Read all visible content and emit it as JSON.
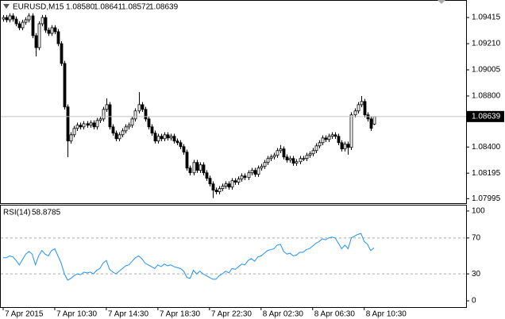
{
  "chart_data": [
    {
      "type": "candlestick",
      "title": "EURUSD,M15",
      "last_bar_labels": [
        "1.08580",
        "1.08641",
        "1.08572",
        "1.08639"
      ],
      "categories": [
        "7 Apr 2015",
        null,
        null,
        null,
        null,
        null,
        null,
        null,
        null,
        null,
        null,
        null,
        null,
        null,
        null,
        null,
        "7 Apr 10:30",
        null,
        null,
        null,
        null,
        null,
        null,
        null,
        null,
        null,
        null,
        null,
        null,
        null,
        null,
        null,
        "7 Apr 14:30",
        null,
        null,
        null,
        null,
        null,
        null,
        null,
        null,
        null,
        null,
        null,
        null,
        null,
        null,
        null,
        "7 Apr 18:30",
        null,
        null,
        null,
        null,
        null,
        null,
        null,
        null,
        null,
        null,
        null,
        null,
        null,
        null,
        null,
        "7 Apr 22:30",
        null,
        null,
        null,
        null,
        null,
        null,
        null,
        null,
        null,
        null,
        null,
        null,
        null,
        null,
        null,
        "8 Apr 02:30",
        null,
        null,
        null,
        null,
        null,
        null,
        null,
        null,
        null,
        null,
        null,
        null,
        null,
        null,
        null,
        "8 Apr 06:30",
        null,
        null,
        null,
        null,
        null,
        null,
        null,
        null,
        null,
        null,
        null,
        null,
        null,
        null,
        null,
        "8 Apr 10:30",
        null,
        null,
        null
      ],
      "open": [
        1.09403,
        1.09415,
        1.09397,
        1.09428,
        1.09403,
        1.09366,
        1.09335,
        1.09378,
        1.09397,
        1.09428,
        1.09273,
        1.09179,
        1.09366,
        1.09415,
        1.09316,
        1.09291,
        1.09335,
        1.09304,
        1.0921,
        1.09055,
        1.08714,
        1.08447,
        1.08496,
        1.08546,
        1.08571,
        1.08558,
        1.08583,
        1.08571,
        1.08589,
        1.08558,
        1.08608,
        1.0862,
        1.08695,
        1.08732,
        1.08558,
        1.08509,
        1.08465,
        1.08496,
        1.08527,
        1.08558,
        1.08571,
        1.0862,
        1.08683,
        1.08732,
        1.08695,
        1.0862,
        1.08558,
        1.08509,
        1.08447,
        1.08484,
        1.08465,
        1.08496,
        1.08471,
        1.08484,
        1.08447,
        1.08434,
        1.08403,
        1.0836,
        1.08235,
        1.08198,
        1.08279,
        1.08217,
        1.0826,
        1.08198,
        1.08155,
        1.08111,
        1.08062,
        1.08049,
        1.08074,
        1.08093,
        1.08111,
        1.08086,
        1.08136,
        1.08124,
        1.08149,
        1.08173,
        1.08161,
        1.08198,
        1.08217,
        1.08186,
        1.08235,
        1.08248,
        1.08279,
        1.0831,
        1.08322,
        1.08335,
        1.08372,
        1.08385,
        1.08322,
        1.08298,
        1.0831,
        1.08273,
        1.08285,
        1.0831,
        1.0831,
        1.08335,
        1.08347,
        1.08372,
        1.08409,
        1.08434,
        1.08471,
        1.08459,
        1.08484,
        1.08496,
        1.08484,
        1.08434,
        1.08385,
        1.08422,
        1.08397,
        1.08652,
        1.08683,
        1.08732,
        1.08757,
        1.08652,
        1.0862,
        1.0858
      ],
      "high": [
        1.09435,
        1.09435,
        1.09448,
        1.09448,
        1.09423,
        1.09386,
        1.09398,
        1.09417,
        1.09448,
        1.09448,
        1.09293,
        1.09386,
        1.09435,
        1.09435,
        1.09336,
        1.09355,
        1.09355,
        1.09324,
        1.0923,
        1.09075,
        1.08734,
        1.08516,
        1.08566,
        1.08591,
        1.08591,
        1.08603,
        1.08603,
        1.08609,
        1.08609,
        1.08628,
        1.0864,
        1.08715,
        1.0878,
        1.08752,
        1.08578,
        1.08529,
        1.08516,
        1.08547,
        1.08578,
        1.08591,
        1.0864,
        1.08703,
        1.0883,
        1.08752,
        1.08715,
        1.0864,
        1.08578,
        1.08529,
        1.08504,
        1.08504,
        1.08516,
        1.08516,
        1.08504,
        1.08504,
        1.08467,
        1.08454,
        1.08423,
        1.0838,
        1.08255,
        1.08299,
        1.08299,
        1.0828,
        1.0828,
        1.08218,
        1.08175,
        1.08131,
        1.08082,
        1.08094,
        1.08113,
        1.08131,
        1.08131,
        1.08156,
        1.08156,
        1.08169,
        1.08193,
        1.08193,
        1.08218,
        1.08237,
        1.08237,
        1.08255,
        1.08268,
        1.08299,
        1.0833,
        1.08342,
        1.08355,
        1.08392,
        1.08416,
        1.08405,
        1.08342,
        1.0833,
        1.0833,
        1.08305,
        1.0833,
        1.0833,
        1.08355,
        1.08367,
        1.08392,
        1.08429,
        1.08454,
        1.08491,
        1.08491,
        1.08504,
        1.08516,
        1.08516,
        1.08504,
        1.08454,
        1.08442,
        1.08442,
        1.08672,
        1.08703,
        1.08752,
        1.088,
        1.08777,
        1.08672,
        1.0864,
        1.08641
      ],
      "low": [
        1.09383,
        1.09377,
        1.09377,
        1.09383,
        1.09346,
        1.09315,
        1.09315,
        1.09358,
        1.09377,
        1.09253,
        1.0911,
        1.09159,
        1.09346,
        1.09296,
        1.09271,
        1.09271,
        1.09284,
        1.0919,
        1.09035,
        1.08694,
        1.0832,
        1.08427,
        1.08476,
        1.08526,
        1.08538,
        1.08538,
        1.08551,
        1.08551,
        1.08538,
        1.08538,
        1.08588,
        1.086,
        1.08675,
        1.08538,
        1.08489,
        1.08445,
        1.08445,
        1.08476,
        1.08507,
        1.08538,
        1.08551,
        1.086,
        1.08663,
        1.08675,
        1.086,
        1.08538,
        1.08489,
        1.08427,
        1.08427,
        1.08445,
        1.08445,
        1.08451,
        1.08451,
        1.08427,
        1.08414,
        1.08383,
        1.0834,
        1.08215,
        1.08178,
        1.08178,
        1.08197,
        1.08197,
        1.08178,
        1.08135,
        1.08091,
        1.08,
        1.08029,
        1.08029,
        1.08054,
        1.08073,
        1.08066,
        1.08066,
        1.08104,
        1.08104,
        1.08129,
        1.08141,
        1.08141,
        1.08178,
        1.08166,
        1.08166,
        1.08215,
        1.08228,
        1.08259,
        1.0829,
        1.08302,
        1.08315,
        1.08352,
        1.08302,
        1.08278,
        1.08278,
        1.08253,
        1.08253,
        1.08265,
        1.0829,
        1.0829,
        1.08315,
        1.08327,
        1.08352,
        1.08389,
        1.08414,
        1.08439,
        1.08439,
        1.08464,
        1.08464,
        1.08414,
        1.08365,
        1.08365,
        1.0834,
        1.08377,
        1.08632,
        1.08663,
        1.08712,
        1.08632,
        1.086,
        1.08526,
        1.08572
      ],
      "close": [
        1.09415,
        1.09397,
        1.09428,
        1.09403,
        1.09366,
        1.09335,
        1.09378,
        1.09397,
        1.09428,
        1.09273,
        1.09179,
        1.09366,
        1.09415,
        1.09316,
        1.09291,
        1.09335,
        1.09304,
        1.0921,
        1.09055,
        1.08714,
        1.08447,
        1.08496,
        1.08546,
        1.08571,
        1.08558,
        1.08583,
        1.08571,
        1.08589,
        1.08558,
        1.08608,
        1.0862,
        1.08695,
        1.08732,
        1.08558,
        1.08509,
        1.08465,
        1.08496,
        1.08527,
        1.08558,
        1.08571,
        1.0862,
        1.08683,
        1.08732,
        1.08695,
        1.0862,
        1.08558,
        1.08509,
        1.08447,
        1.08484,
        1.08465,
        1.08496,
        1.08471,
        1.08484,
        1.08447,
        1.08434,
        1.08403,
        1.0836,
        1.08235,
        1.08198,
        1.08279,
        1.08217,
        1.0826,
        1.08198,
        1.08155,
        1.08111,
        1.08062,
        1.08049,
        1.08074,
        1.08093,
        1.08111,
        1.08086,
        1.08136,
        1.08124,
        1.08149,
        1.08173,
        1.08161,
        1.08198,
        1.08217,
        1.08186,
        1.08235,
        1.08248,
        1.08279,
        1.0831,
        1.08322,
        1.08335,
        1.08372,
        1.08385,
        1.08322,
        1.08298,
        1.0831,
        1.08273,
        1.08285,
        1.0831,
        1.0831,
        1.08335,
        1.08347,
        1.08372,
        1.08409,
        1.08434,
        1.08471,
        1.08459,
        1.08484,
        1.08496,
        1.08484,
        1.08434,
        1.08385,
        1.08422,
        1.08397,
        1.08652,
        1.08683,
        1.08732,
        1.08757,
        1.08652,
        1.0862,
        1.08546,
        1.08639
      ],
      "ylim": [
        1.0796,
        1.0954
      ],
      "yticks": [
        1.09415,
        {
          "value": 1.0921,
          "label": "1.09210"
        },
        1.09005,
        {
          "value": 1.088,
          "label": "1.08800"
        },
        {
          "value": 1.084,
          "label": "1.08400"
        },
        1.08195,
        1.07995
      ],
      "color": "#000000"
    },
    {
      "type": "line",
      "title": "RSI(14)",
      "color": "#1e90ff",
      "values": [
        48,
        48,
        50,
        49,
        45,
        40,
        46,
        52,
        55,
        52,
        40,
        50,
        56,
        52,
        50,
        56,
        58,
        50,
        42,
        30,
        23,
        25,
        28,
        30,
        29,
        32,
        31,
        32,
        30,
        34,
        36,
        42,
        45,
        35,
        32,
        30,
        33,
        36,
        39,
        40,
        44,
        48,
        50,
        47,
        42,
        40,
        38,
        36,
        40,
        38,
        41,
        39,
        40,
        38,
        37,
        36,
        33,
        26,
        25,
        34,
        30,
        33,
        30,
        28,
        26,
        24,
        24,
        28,
        30,
        33,
        31,
        36,
        35,
        38,
        41,
        40,
        45,
        47,
        44,
        49,
        50,
        53,
        56,
        57,
        58,
        62,
        63,
        55,
        52,
        53,
        50,
        51,
        54,
        54,
        57,
        58,
        61,
        64,
        66,
        69,
        68,
        70,
        71,
        70,
        64,
        58,
        62,
        58,
        70,
        72,
        74,
        75,
        66,
        63,
        56,
        58.8785
      ],
      "ylim": [
        -7,
        107
      ],
      "yticks": [
        0,
        30,
        70,
        100
      ],
      "levels": [
        30,
        70
      ]
    }
  ]
}
